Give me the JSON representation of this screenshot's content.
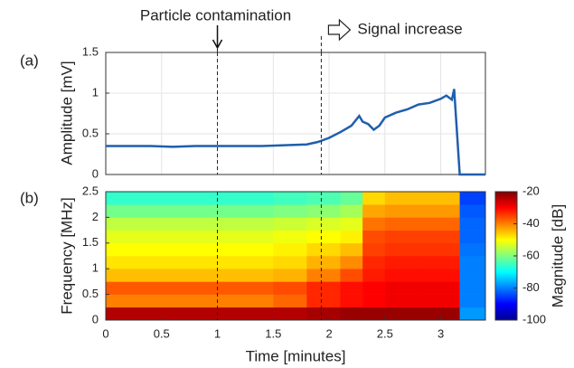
{
  "chart_data": [
    {
      "type": "line",
      "label": "(a)",
      "ylabel": "Amplitude [mV]",
      "ylim": [
        0,
        1.5
      ],
      "yticks": [
        0,
        0.5,
        1,
        1.5
      ],
      "xlim": [
        0,
        3.4
      ],
      "grid": true,
      "annotations": [
        {
          "text": "Particle contamination",
          "x": 1
        },
        {
          "text": "Signal increase",
          "x": 1.93
        }
      ],
      "color": "#1f5fad",
      "x": [
        0,
        0.2,
        0.4,
        0.6,
        0.8,
        1.0,
        1.2,
        1.4,
        1.6,
        1.8,
        1.9,
        2.0,
        2.1,
        2.2,
        2.27,
        2.3,
        2.35,
        2.4,
        2.45,
        2.5,
        2.6,
        2.7,
        2.8,
        2.9,
        3.0,
        3.05,
        3.1,
        3.12,
        3.17,
        3.25,
        3.4
      ],
      "values": [
        0.35,
        0.35,
        0.35,
        0.34,
        0.35,
        0.35,
        0.35,
        0.35,
        0.36,
        0.37,
        0.4,
        0.45,
        0.52,
        0.6,
        0.72,
        0.65,
        0.62,
        0.55,
        0.6,
        0.7,
        0.76,
        0.8,
        0.86,
        0.88,
        0.93,
        0.97,
        0.92,
        1.05,
        0,
        0,
        0
      ]
    },
    {
      "type": "heatmap",
      "label": "(b)",
      "xlabel": "Time [minutes]",
      "ylabel": "Frequency [MHz]",
      "xlim": [
        0,
        3.4
      ],
      "xticks": [
        0,
        0.5,
        1,
        1.5,
        2,
        2.5,
        3
      ],
      "ylim": [
        0,
        2.5
      ],
      "yticks": [
        0,
        0.5,
        1,
        1.5,
        2,
        2.5
      ],
      "x_edges": [
        0,
        0.5,
        1,
        1.5,
        1.8,
        2.1,
        2.3,
        2.5,
        2.8,
        3.17,
        3.4
      ],
      "y_edges": [
        0,
        0.25,
        0.5,
        0.75,
        1,
        1.25,
        1.5,
        1.75,
        2,
        2.25,
        2.5
      ],
      "z": [
        [
          -24,
          -24,
          -24,
          -24,
          -23,
          -22,
          -22,
          -22,
          -22,
          -78
        ],
        [
          -40,
          -40,
          -40,
          -38,
          -33,
          -31,
          -30,
          -29,
          -29,
          -80
        ],
        [
          -37,
          -37,
          -37,
          -36,
          -33,
          -31,
          -30,
          -29,
          -29,
          -80
        ],
        [
          -45,
          -45,
          -45,
          -44,
          -40,
          -36,
          -32,
          -31,
          -31,
          -80
        ],
        [
          -48,
          -48,
          -48,
          -47,
          -44,
          -41,
          -33,
          -32,
          -32,
          -80
        ],
        [
          -50,
          -50,
          -50,
          -49,
          -47,
          -45,
          -35,
          -34,
          -34,
          -81
        ],
        [
          -52,
          -52,
          -52,
          -51,
          -50,
          -49,
          -36,
          -35,
          -35,
          -82
        ],
        [
          -55,
          -55,
          -55,
          -54,
          -53,
          -52,
          -39,
          -38,
          -38,
          -82
        ],
        [
          -61,
          -61,
          -61,
          -60,
          -59,
          -57,
          -43,
          -42,
          -42,
          -83
        ],
        [
          -66,
          -66,
          -66,
          -65,
          -64,
          -62,
          -47,
          -45,
          -45,
          -85
        ]
      ],
      "colorbar": {
        "label": "Magnitude [dB]",
        "lim": [
          -100,
          -20
        ],
        "ticks": [
          -100,
          -80,
          -60,
          -40,
          -20
        ]
      }
    }
  ]
}
